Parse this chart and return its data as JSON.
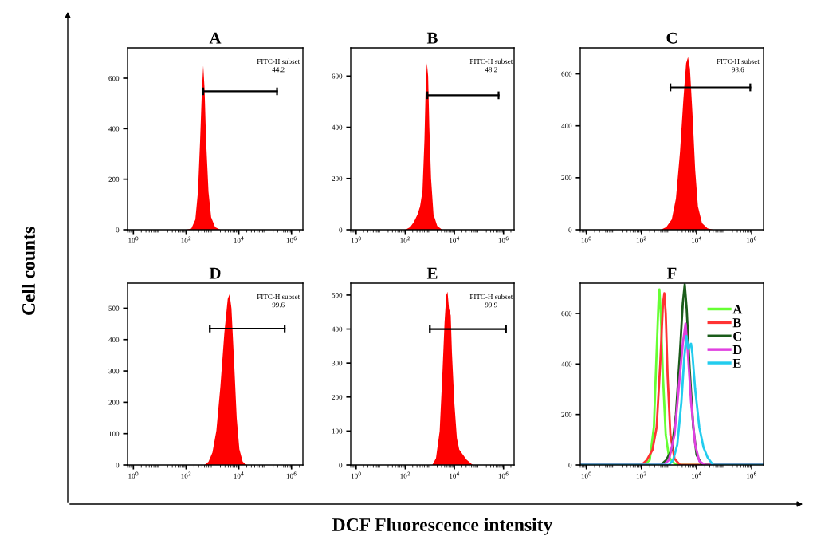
{
  "chart_data": [
    {
      "type": "area",
      "title": "A",
      "ylabel": "Cell counts",
      "xlim": [
        0.6,
        2700000
      ],
      "xticks": [
        {
          "value": 1,
          "label": "10$^{0}$"
        },
        {
          "value": 100,
          "label": "10$^{2}$"
        },
        {
          "value": 10000,
          "label": "10$^{4}$"
        },
        {
          "value": 1000000,
          "label": "10$^{6}$"
        }
      ],
      "ylim": [
        0,
        720
      ],
      "yticks": [
        0,
        200,
        400,
        600
      ],
      "log": "x",
      "grid": false,
      "annotations": [
        "FITC-H subset",
        "44.2"
      ],
      "series": [
        {
          "color": "#ff0000",
          "x": [
            100,
            158,
            224,
            282,
            339,
            398,
            447,
            501,
            575,
            708,
            891,
            1260,
            2000
          ],
          "values": [
            0,
            5,
            40,
            150,
            350,
            550,
            650,
            560,
            350,
            150,
            50,
            10,
            0
          ]
        },
        {
          "type": "line",
          "color": "#000000",
          "x": [
            447,
            282000
          ],
          "values": [
            548,
            548
          ],
          "errors": [
            15,
            15
          ]
        }
      ]
    },
    {
      "type": "area",
      "title": "B",
      "xlim": [
        0.6,
        2700000
      ],
      "xticks": [
        {
          "value": 1,
          "label": "10$^{0}$"
        },
        {
          "value": 100,
          "label": "10$^{2}$"
        },
        {
          "value": 10000,
          "label": "10$^{4}$"
        },
        {
          "value": 1000000,
          "label": "10$^{6}$"
        }
      ],
      "ylim": [
        0,
        710
      ],
      "yticks": [
        0,
        200,
        400,
        600
      ],
      "log": "x",
      "grid": false,
      "annotations": [
        "FITC-H subset",
        "48.2"
      ],
      "series": [
        {
          "color": "#ff0000",
          "x": [
            100,
            158,
            224,
            316,
            398,
            501,
            603,
            676,
            759,
            851,
            955,
            1120,
            1410,
            2000,
            3160
          ],
          "values": [
            0,
            10,
            30,
            60,
            90,
            150,
            350,
            550,
            650,
            600,
            400,
            200,
            60,
            15,
            0
          ]
        },
        {
          "type": "line",
          "color": "#000000",
          "x": [
            794,
            630000
          ],
          "values": [
            525,
            525
          ],
          "errors": [
            15,
            15
          ]
        }
      ]
    },
    {
      "type": "area",
      "title": "C",
      "xlim": [
        0.6,
        2700000
      ],
      "xticks": [
        {
          "value": 1,
          "label": "10$^{0}$"
        },
        {
          "value": 100,
          "label": "10$^{2}$"
        },
        {
          "value": 10000,
          "label": "10$^{4}$"
        },
        {
          "value": 1000000,
          "label": "10$^{6}$"
        }
      ],
      "ylim": [
        0,
        700
      ],
      "yticks": [
        0,
        200,
        400,
        600
      ],
      "log": "x",
      "grid": false,
      "annotations": [
        "FITC-H subset",
        "98.6"
      ],
      "series": [
        {
          "color": "#ff0000",
          "x": [
            501,
            794,
            1260,
            1780,
            2510,
            3310,
            4170,
            4900,
            5750,
            7080,
            8910,
            11200,
            15800,
            25100,
            39800
          ],
          "values": [
            0,
            10,
            40,
            120,
            300,
            500,
            640,
            665,
            620,
            450,
            230,
            90,
            25,
            5,
            0
          ]
        },
        {
          "type": "line",
          "color": "#000000",
          "x": [
            1120,
            890000
          ],
          "values": [
            548,
            548
          ],
          "errors": [
            15,
            15
          ]
        }
      ]
    },
    {
      "type": "area",
      "title": "D",
      "xlim": [
        0.6,
        2700000
      ],
      "xticks": [
        {
          "value": 1,
          "label": "10$^{0}$"
        },
        {
          "value": 100,
          "label": "10$^{2}$"
        },
        {
          "value": 10000,
          "label": "10$^{4}$"
        },
        {
          "value": 1000000,
          "label": "10$^{6}$"
        }
      ],
      "ylim": [
        0,
        580
      ],
      "yticks": [
        0,
        100,
        200,
        300,
        400,
        500
      ],
      "log": "x",
      "grid": false,
      "annotations": [
        "FITC-H subset",
        "99.6"
      ],
      "series": [
        {
          "color": "#ff0000",
          "x": [
            501,
            708,
            1000,
            1410,
            2000,
            2820,
            3800,
            4470,
            5250,
            6610,
            8320,
            10500,
            14100,
            20000
          ],
          "values": [
            0,
            10,
            40,
            110,
            250,
            420,
            530,
            545,
            500,
            330,
            150,
            50,
            10,
            0
          ]
        },
        {
          "type": "line",
          "color": "#000000",
          "x": [
            794,
            550000
          ],
          "values": [
            435,
            435
          ],
          "errors": [
            12,
            12
          ]
        }
      ]
    },
    {
      "type": "area",
      "title": "E",
      "xlabel": "DCF Fluorescence intensity",
      "xlim": [
        0.6,
        2700000
      ],
      "xticks": [
        {
          "value": 1,
          "label": "10$^{0}$"
        },
        {
          "value": 100,
          "label": "10$^{2}$"
        },
        {
          "value": 10000,
          "label": "10$^{4}$"
        },
        {
          "value": 1000000,
          "label": "10$^{6}$"
        }
      ],
      "ylim": [
        0,
        535
      ],
      "yticks": [
        0,
        100,
        200,
        300,
        400,
        500
      ],
      "log": "x",
      "grid": false,
      "annotations": [
        "FITC-H subset",
        "99.9"
      ],
      "series": [
        {
          "color": "#ff0000",
          "x": [
            1260,
            1780,
            2510,
            3160,
            3980,
            4680,
            5250,
            6030,
            7080,
            7940,
            10000,
            12600,
            15800,
            22400,
            31600,
            56200
          ],
          "values": [
            0,
            20,
            100,
            250,
            420,
            500,
            510,
            460,
            440,
            330,
            180,
            80,
            45,
            30,
            15,
            0
          ]
        },
        {
          "type": "line",
          "color": "#000000",
          "x": [
            1000,
            1260000
          ],
          "values": [
            400,
            400
          ],
          "errors": [
            12,
            12
          ]
        }
      ]
    },
    {
      "type": "line",
      "title": "F",
      "xlim": [
        0.6,
        2700000
      ],
      "xticks": [
        {
          "value": 1,
          "label": "10$^{0}$"
        },
        {
          "value": 100,
          "label": "10$^{2}$"
        },
        {
          "value": 10000,
          "label": "10$^{4}$"
        },
        {
          "value": 1000000,
          "label": "10$^{6}$"
        }
      ],
      "ylim": [
        0,
        720
      ],
      "yticks": [
        0,
        200,
        400,
        600
      ],
      "log": "x",
      "grid": false,
      "legend": "top right",
      "series": [
        {
          "name": "A",
          "color": "#66ff33",
          "x": [
            0.6,
            126,
            200,
            282,
            355,
            417,
            447,
            501,
            603,
            759,
            1000,
            1580,
            2510,
            2700000
          ],
          "values": [
            0,
            0,
            20,
            150,
            450,
            650,
            695,
            600,
            350,
            120,
            30,
            5,
            0,
            0
          ]
        },
        {
          "name": "B",
          "color": "#ff3333",
          "x": [
            0.6,
            100,
            158,
            251,
            355,
            479,
            603,
            676,
            759,
            891,
            1120,
            1580,
            2510,
            2700000
          ],
          "values": [
            0,
            0,
            20,
            60,
            150,
            400,
            640,
            680,
            600,
            350,
            120,
            25,
            0,
            0
          ]
        },
        {
          "name": "C",
          "color": "#1a5c1a",
          "x": [
            0.6,
            501,
            794,
            1260,
            1780,
            2510,
            3160,
            3720,
            4370,
            5620,
            7590,
            10000,
            15800,
            2700000
          ],
          "values": [
            0,
            0,
            20,
            60,
            200,
            450,
            640,
            715,
            620,
            380,
            150,
            40,
            0,
            0
          ]
        },
        {
          "name": "D",
          "color": "#e040e0",
          "x": [
            0.6,
            631,
            1000,
            1580,
            2240,
            3160,
            3980,
            4790,
            6310,
            8910,
            12600,
            20000,
            2700000
          ],
          "values": [
            0,
            0,
            20,
            120,
            300,
            480,
            560,
            450,
            250,
            80,
            15,
            0,
            0
          ]
        },
        {
          "name": "E",
          "color": "#22ccee",
          "x": [
            0.6,
            1000,
            1410,
            2000,
            2820,
            3550,
            4270,
            5010,
            6310,
            7080,
            8910,
            12600,
            17800,
            25100,
            39800,
            2700000
          ],
          "values": [
            0,
            0,
            20,
            80,
            250,
            420,
            510,
            460,
            480,
            440,
            300,
            150,
            70,
            30,
            0,
            0
          ]
        }
      ]
    }
  ]
}
